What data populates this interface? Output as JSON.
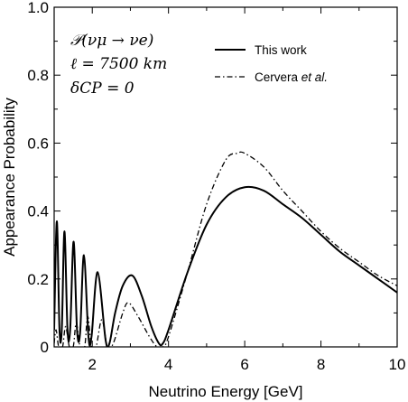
{
  "chart_data": {
    "type": "line",
    "xlabel": "Neutrino Energy [GeV]",
    "ylabel": "Appearance Probability",
    "xlim": [
      1,
      10
    ],
    "ylim": [
      0,
      1.0
    ],
    "x_ticks": [
      "2",
      "4",
      "6",
      "8",
      "10"
    ],
    "x_tick_values": [
      2,
      4,
      6,
      8,
      10
    ],
    "y_ticks": [
      "0",
      "0.2",
      "0.4",
      "0.6",
      "0.8",
      "1.0"
    ],
    "y_tick_values": [
      0,
      0.2,
      0.4,
      0.6,
      0.8,
      1.0
    ],
    "annotation": [
      "𝒫(νμ → νe)",
      "ℓ = 7500 km",
      "δCP = 0"
    ],
    "legend_position": "top-right",
    "series": [
      {
        "name": "This work",
        "style": "solid",
        "color": "#000000",
        "points": [
          [
            1.0,
            0.05
          ],
          [
            1.07,
            0.37
          ],
          [
            1.14,
            0.05
          ],
          [
            1.2,
            0.05
          ],
          [
            1.27,
            0.34
          ],
          [
            1.35,
            0.05
          ],
          [
            1.42,
            0.05
          ],
          [
            1.51,
            0.31
          ],
          [
            1.6,
            0.05
          ],
          [
            1.68,
            0.04
          ],
          [
            1.78,
            0.27
          ],
          [
            1.9,
            0.03
          ],
          [
            1.98,
            0.03
          ],
          [
            2.14,
            0.22
          ],
          [
            2.35,
            0.02
          ],
          [
            2.45,
            0.01
          ],
          [
            2.6,
            0.1
          ],
          [
            2.8,
            0.18
          ],
          [
            3.05,
            0.21
          ],
          [
            3.3,
            0.15
          ],
          [
            3.55,
            0.06
          ],
          [
            3.75,
            0.01
          ],
          [
            3.85,
            0.01
          ],
          [
            4.0,
            0.05
          ],
          [
            4.5,
            0.22
          ],
          [
            5.0,
            0.36
          ],
          [
            5.5,
            0.44
          ],
          [
            6.0,
            0.47
          ],
          [
            6.5,
            0.46
          ],
          [
            7.0,
            0.42
          ],
          [
            7.5,
            0.38
          ],
          [
            8.0,
            0.33
          ],
          [
            8.5,
            0.28
          ],
          [
            9.0,
            0.24
          ],
          [
            9.5,
            0.2
          ],
          [
            10.0,
            0.16
          ]
        ]
      },
      {
        "name": "Cervera et al.",
        "name_plain": "Cervera ",
        "name_italic": "et al.",
        "style": "dashdot",
        "color": "#000000",
        "points": [
          [
            1.0,
            0.01
          ],
          [
            1.05,
            0.05
          ],
          [
            1.12,
            0.0
          ],
          [
            1.22,
            0.0
          ],
          [
            1.3,
            0.06
          ],
          [
            1.4,
            0.0
          ],
          [
            1.5,
            0.0
          ],
          [
            1.58,
            0.07
          ],
          [
            1.68,
            0.0
          ],
          [
            1.8,
            0.0
          ],
          [
            1.88,
            0.09
          ],
          [
            1.98,
            0.0
          ],
          [
            2.1,
            0.0
          ],
          [
            2.25,
            0.08
          ],
          [
            2.4,
            0.0
          ],
          [
            2.55,
            0.01
          ],
          [
            2.8,
            0.1
          ],
          [
            2.95,
            0.13
          ],
          [
            3.2,
            0.09
          ],
          [
            3.5,
            0.03
          ],
          [
            3.7,
            0.0
          ],
          [
            3.85,
            0.0
          ],
          [
            4.0,
            0.03
          ],
          [
            4.5,
            0.22
          ],
          [
            5.0,
            0.42
          ],
          [
            5.5,
            0.55
          ],
          [
            5.8,
            0.57
          ],
          [
            6.0,
            0.57
          ],
          [
            6.5,
            0.53
          ],
          [
            7.0,
            0.46
          ],
          [
            7.5,
            0.4
          ],
          [
            8.0,
            0.34
          ],
          [
            8.5,
            0.29
          ],
          [
            9.0,
            0.25
          ],
          [
            9.5,
            0.21
          ],
          [
            10.0,
            0.18
          ]
        ]
      }
    ]
  }
}
